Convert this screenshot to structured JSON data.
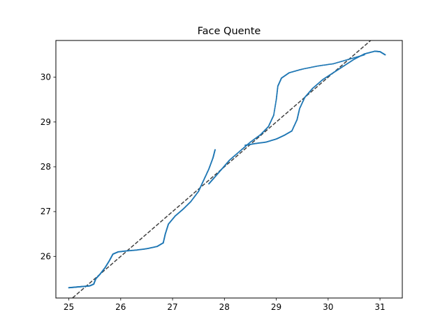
{
  "chart_data": {
    "type": "scatter",
    "title": "Face Quente",
    "xlabel": "",
    "ylabel": "",
    "xlim": [
      24.75,
      31.43
    ],
    "ylim": [
      25.07,
      30.82
    ],
    "xticks": [
      25,
      26,
      27,
      28,
      29,
      30,
      31
    ],
    "yticks": [
      26,
      27,
      28,
      29,
      30
    ],
    "grid": false,
    "point_color": "#1f77b4",
    "reference_line": {
      "style": "dashed",
      "color": "#404040",
      "equation": "y = x"
    },
    "series": [
      {
        "points": [
          [
            25.0,
            25.3
          ],
          [
            25.1,
            25.31
          ],
          [
            25.2,
            25.32
          ],
          [
            25.3,
            25.33
          ],
          [
            25.4,
            25.34
          ],
          [
            25.48,
            25.38
          ],
          [
            25.52,
            25.5
          ],
          [
            25.6,
            25.6
          ],
          [
            25.7,
            25.75
          ],
          [
            25.78,
            25.9
          ],
          [
            25.85,
            26.05
          ],
          [
            25.95,
            26.1
          ],
          [
            26.1,
            26.12
          ],
          [
            26.3,
            26.14
          ],
          [
            26.5,
            26.17
          ],
          [
            26.7,
            26.22
          ],
          [
            26.82,
            26.3
          ],
          [
            26.86,
            26.5
          ],
          [
            26.92,
            26.72
          ],
          [
            27.05,
            26.9
          ],
          [
            27.2,
            27.05
          ],
          [
            27.35,
            27.22
          ],
          [
            27.5,
            27.45
          ],
          [
            27.6,
            27.7
          ],
          [
            27.7,
            27.95
          ],
          [
            27.78,
            28.2
          ],
          [
            27.82,
            28.38
          ],
          [
            27.7,
            27.62
          ],
          [
            27.8,
            27.75
          ],
          [
            27.95,
            27.95
          ],
          [
            28.1,
            28.15
          ],
          [
            28.3,
            28.35
          ],
          [
            28.5,
            28.55
          ],
          [
            28.7,
            28.72
          ],
          [
            28.85,
            28.9
          ],
          [
            28.95,
            29.15
          ],
          [
            29.0,
            29.5
          ],
          [
            29.03,
            29.8
          ],
          [
            29.1,
            29.98
          ],
          [
            29.25,
            30.1
          ],
          [
            29.5,
            30.18
          ],
          [
            29.8,
            30.25
          ],
          [
            30.1,
            30.3
          ],
          [
            30.4,
            30.4
          ],
          [
            30.7,
            30.5
          ],
          [
            28.4,
            28.48
          ],
          [
            28.6,
            28.52
          ],
          [
            28.8,
            28.55
          ],
          [
            29.0,
            28.62
          ],
          [
            29.15,
            28.7
          ],
          [
            29.3,
            28.8
          ],
          [
            29.4,
            29.05
          ],
          [
            29.45,
            29.3
          ],
          [
            29.55,
            29.55
          ],
          [
            29.7,
            29.75
          ],
          [
            29.9,
            29.95
          ],
          [
            30.1,
            30.1
          ],
          [
            30.3,
            30.25
          ],
          [
            30.5,
            30.4
          ],
          [
            30.7,
            30.52
          ],
          [
            30.9,
            30.58
          ],
          [
            31.0,
            30.57
          ],
          [
            31.1,
            30.5
          ]
        ]
      }
    ]
  }
}
